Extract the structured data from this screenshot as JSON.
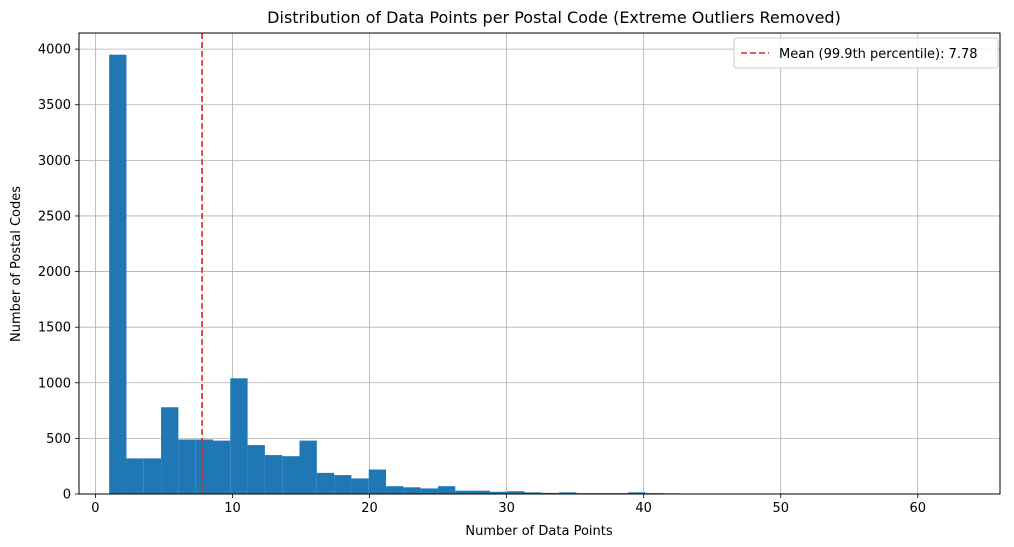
{
  "chart_data": {
    "type": "bar",
    "title": "Distribution of Data Points per Postal Code (Extreme Outliers Removed)",
    "xlabel": "Number of Data Points",
    "ylabel": "Number of Postal Codes",
    "xlim": [
      -1.2,
      66.0
    ],
    "ylim": [
      0,
      4145
    ],
    "xticks": [
      0,
      10,
      20,
      30,
      40,
      50,
      60
    ],
    "yticks": [
      0,
      500,
      1000,
      1500,
      2000,
      2500,
      3000,
      3500,
      4000
    ],
    "grid": true,
    "bin_start": 1,
    "bin_width": 1.2627,
    "values": [
      3950,
      320,
      320,
      780,
      490,
      490,
      480,
      1040,
      440,
      350,
      340,
      480,
      190,
      170,
      140,
      220,
      70,
      60,
      50,
      70,
      30,
      30,
      20,
      25,
      15,
      10,
      15,
      8,
      8,
      8,
      15,
      8,
      6,
      5,
      5,
      5,
      5,
      5,
      5,
      5,
      3,
      2,
      0,
      3,
      3,
      3,
      0,
      5,
      0,
      0,
      3,
      0
    ],
    "bar_color": "#1f77b4",
    "mean_line": {
      "value": 7.78,
      "color": "#d62728",
      "label": "Mean (99.9th percentile): 7.78"
    },
    "legend_position": "top-right"
  }
}
